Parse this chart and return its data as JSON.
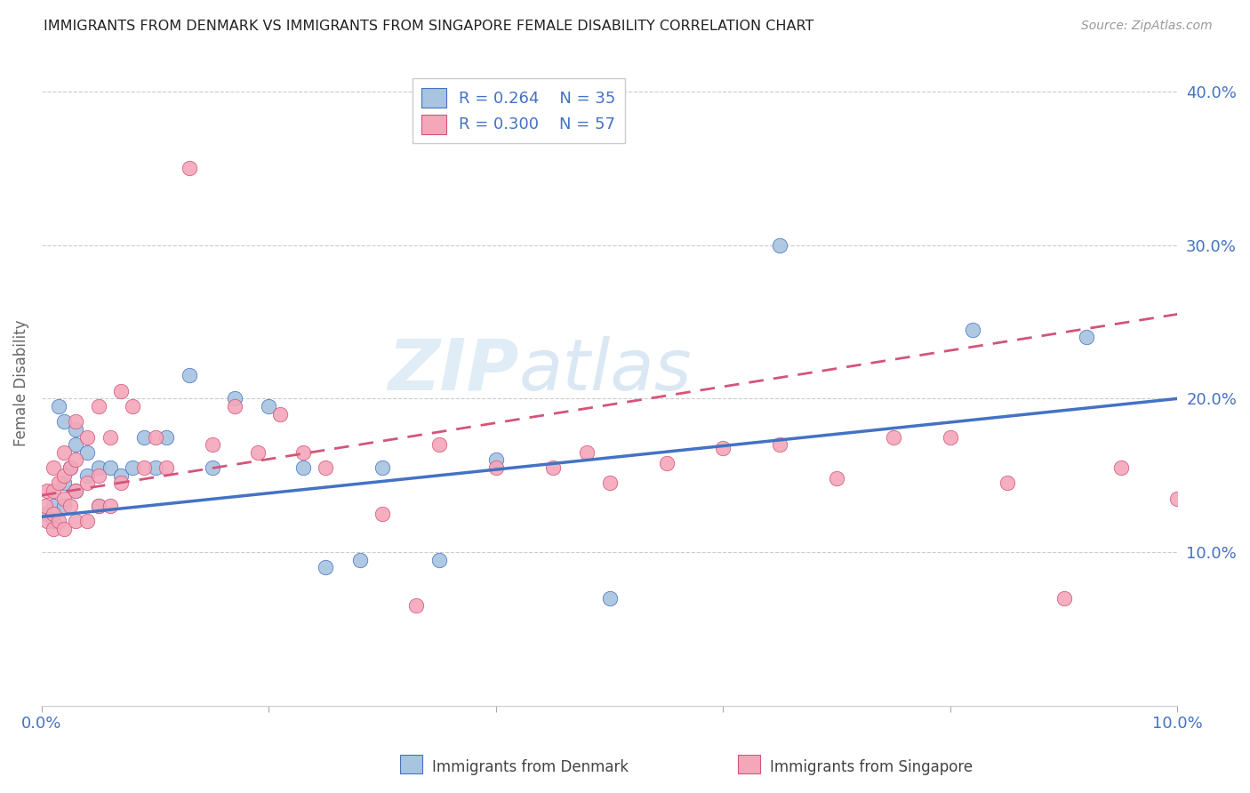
{
  "title": "IMMIGRANTS FROM DENMARK VS IMMIGRANTS FROM SINGAPORE FEMALE DISABILITY CORRELATION CHART",
  "source": "Source: ZipAtlas.com",
  "ylabel": "Female Disability",
  "xlim": [
    0.0,
    0.1
  ],
  "ylim": [
    0.0,
    0.42
  ],
  "yticks": [
    0.1,
    0.2,
    0.3,
    0.4
  ],
  "ytick_labels": [
    "10.0%",
    "20.0%",
    "30.0%",
    "40.0%"
  ],
  "xticks": [
    0.0,
    0.02,
    0.04,
    0.06,
    0.08,
    0.1
  ],
  "xtick_labels": [
    "0.0%",
    "",
    "",
    "",
    "",
    "10.0%"
  ],
  "legend1_R": "0.264",
  "legend1_N": "35",
  "legend2_R": "0.300",
  "legend2_N": "57",
  "color_denmark": "#a8c4e0",
  "color_singapore": "#f4a7b9",
  "trendline_denmark_color": "#4472c4",
  "trendline_singapore_color": "#d4547a",
  "watermark_zip": "ZIP",
  "watermark_atlas": "atlas",
  "denmark_x": [
    0.0005,
    0.001,
    0.001,
    0.0015,
    0.002,
    0.002,
    0.002,
    0.0025,
    0.003,
    0.003,
    0.003,
    0.004,
    0.004,
    0.005,
    0.005,
    0.006,
    0.007,
    0.008,
    0.009,
    0.01,
    0.011,
    0.013,
    0.015,
    0.017,
    0.02,
    0.023,
    0.025,
    0.028,
    0.03,
    0.035,
    0.04,
    0.05,
    0.065,
    0.082,
    0.092
  ],
  "denmark_y": [
    0.125,
    0.12,
    0.13,
    0.195,
    0.13,
    0.145,
    0.185,
    0.155,
    0.14,
    0.17,
    0.18,
    0.15,
    0.165,
    0.13,
    0.155,
    0.155,
    0.15,
    0.155,
    0.175,
    0.155,
    0.175,
    0.215,
    0.155,
    0.2,
    0.195,
    0.155,
    0.09,
    0.095,
    0.155,
    0.095,
    0.16,
    0.07,
    0.3,
    0.245,
    0.24
  ],
  "singapore_x": [
    0.0003,
    0.0005,
    0.0005,
    0.001,
    0.001,
    0.001,
    0.001,
    0.0015,
    0.0015,
    0.002,
    0.002,
    0.002,
    0.002,
    0.0025,
    0.0025,
    0.003,
    0.003,
    0.003,
    0.003,
    0.004,
    0.004,
    0.004,
    0.005,
    0.005,
    0.005,
    0.006,
    0.006,
    0.007,
    0.007,
    0.008,
    0.009,
    0.01,
    0.011,
    0.013,
    0.015,
    0.017,
    0.019,
    0.021,
    0.023,
    0.025,
    0.03,
    0.033,
    0.035,
    0.04,
    0.045,
    0.048,
    0.05,
    0.055,
    0.06,
    0.065,
    0.07,
    0.075,
    0.08,
    0.085,
    0.09,
    0.095,
    0.1
  ],
  "singapore_y": [
    0.13,
    0.12,
    0.14,
    0.115,
    0.125,
    0.14,
    0.155,
    0.12,
    0.145,
    0.115,
    0.135,
    0.15,
    0.165,
    0.13,
    0.155,
    0.12,
    0.14,
    0.16,
    0.185,
    0.12,
    0.145,
    0.175,
    0.13,
    0.15,
    0.195,
    0.13,
    0.175,
    0.145,
    0.205,
    0.195,
    0.155,
    0.175,
    0.155,
    0.35,
    0.17,
    0.195,
    0.165,
    0.19,
    0.165,
    0.155,
    0.125,
    0.065,
    0.17,
    0.155,
    0.155,
    0.165,
    0.145,
    0.158,
    0.168,
    0.17,
    0.148,
    0.175,
    0.175,
    0.145,
    0.07,
    0.155,
    0.135
  ],
  "dk_trend_x0": 0.0,
  "dk_trend_y0": 0.123,
  "dk_trend_x1": 0.1,
  "dk_trend_y1": 0.2,
  "sg_trend_x0": 0.0,
  "sg_trend_y0": 0.137,
  "sg_trend_x1": 0.1,
  "sg_trend_y1": 0.255
}
